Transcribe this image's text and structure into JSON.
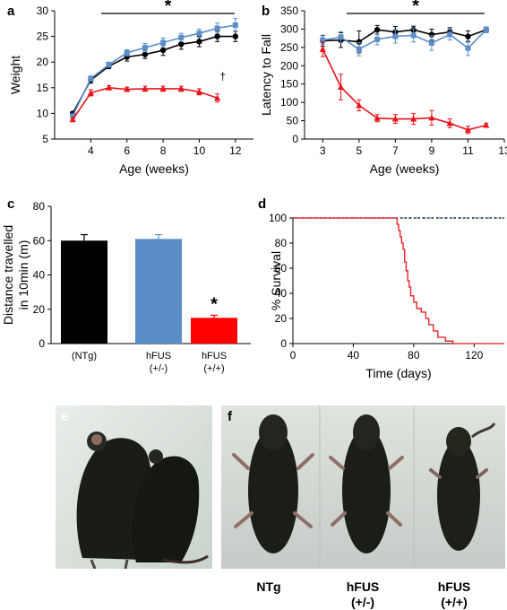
{
  "panels": {
    "a": "a",
    "b": "b",
    "c": "c",
    "d": "d",
    "e": "e",
    "f": "f"
  },
  "colors": {
    "ntg": "#000000",
    "het": "#5b8ec8",
    "hom": "#e8141b",
    "bar_black": "#000000",
    "bar_blue": "#5b8ec8",
    "bar_red": "#ff0000"
  },
  "photos": {
    "f_labels": [
      "NTg",
      "hFUS\n(+/-)",
      "hFUS\n(+/+)"
    ]
  },
  "chart_data": [
    {
      "panel": "a",
      "type": "line",
      "ylabel": "Weight",
      "xlabel": "Age (weeks)",
      "xlim": [
        2,
        13
      ],
      "ylim": [
        5,
        30
      ],
      "xticks": [
        4,
        6,
        8,
        10,
        12
      ],
      "yticks": [
        5,
        10,
        15,
        20,
        25,
        30
      ],
      "significance": "*",
      "dagger": "†",
      "series": [
        {
          "color": "#000000",
          "marker": "circle",
          "x": [
            3,
            4,
            5,
            6,
            7,
            8,
            9,
            10,
            11,
            12
          ],
          "y": [
            10,
            16.5,
            19.2,
            21,
            21.5,
            22.3,
            23.5,
            24,
            25,
            25
          ],
          "err": [
            0.3,
            0.6,
            0.5,
            0.8,
            0.8,
            1.0,
            1.0,
            1.0,
            1.0,
            1.0
          ]
        },
        {
          "color": "#5b8ec8",
          "marker": "square",
          "x": [
            3,
            4,
            5,
            6,
            7,
            8,
            9,
            10,
            11,
            12
          ],
          "y": [
            9.5,
            16.8,
            19.5,
            21.8,
            22.8,
            23.8,
            24.8,
            25.6,
            26.6,
            27.2
          ],
          "err": [
            0.3,
            0.5,
            0.5,
            0.6,
            0.8,
            0.9,
            0.8,
            0.8,
            1.0,
            1.3
          ]
        },
        {
          "color": "#e8141b",
          "marker": "triangle",
          "x": [
            3,
            4,
            5,
            6,
            7,
            8,
            9,
            10,
            11
          ],
          "y": [
            8.8,
            14,
            15,
            14.7,
            14.8,
            14.8,
            14.8,
            14.2,
            13
          ],
          "err": [
            0.2,
            0.6,
            0.4,
            0.4,
            0.5,
            0.5,
            0.5,
            0.6,
            0.8
          ]
        }
      ]
    },
    {
      "panel": "b",
      "type": "line",
      "ylabel": "Latency to Fall",
      "xlabel": "Age (weeks)",
      "xlim": [
        2,
        13
      ],
      "ylim": [
        0,
        350
      ],
      "xticks": [
        3,
        5,
        7,
        9,
        11,
        13
      ],
      "yticks": [
        0,
        50,
        100,
        150,
        200,
        250,
        300,
        350
      ],
      "significance": "*",
      "series": [
        {
          "color": "#000000",
          "marker": "circle",
          "x": [
            3,
            4,
            5,
            6,
            7,
            8,
            9,
            10,
            11,
            12
          ],
          "y": [
            268,
            270,
            265,
            298,
            292,
            298,
            285,
            292,
            280,
            298
          ],
          "err": [
            15,
            20,
            30,
            12,
            15,
            10,
            15,
            12,
            15,
            8
          ]
        },
        {
          "color": "#5b8ec8",
          "marker": "square",
          "x": [
            3,
            4,
            5,
            6,
            7,
            8,
            9,
            10,
            11,
            12
          ],
          "y": [
            270,
            278,
            245,
            272,
            280,
            283,
            262,
            285,
            248,
            298
          ],
          "err": [
            12,
            15,
            18,
            15,
            18,
            18,
            20,
            15,
            20,
            8
          ]
        },
        {
          "color": "#e8141b",
          "marker": "triangle",
          "x": [
            3,
            4,
            5,
            6,
            7,
            8,
            9,
            10,
            11,
            12
          ],
          "y": [
            245,
            142,
            92,
            57,
            55,
            55,
            58,
            43,
            25,
            38
          ],
          "err": [
            20,
            35,
            15,
            10,
            12,
            15,
            20,
            12,
            10,
            5
          ]
        }
      ]
    },
    {
      "panel": "c",
      "type": "bar",
      "ylabel": "Distance travelled\nin 10min (m)",
      "categories": [
        "(NTg)",
        "hFUS\n(+/-)",
        "hFUS\n(+/+)"
      ],
      "values": [
        60,
        61,
        15
      ],
      "err": [
        3.5,
        2.5,
        1.5
      ],
      "colors": [
        "#000000",
        "#5b8ec8",
        "#ff0000"
      ],
      "ylim": [
        0,
        80
      ],
      "yticks": [
        0,
        20,
        40,
        60,
        80
      ],
      "significance": "*"
    },
    {
      "panel": "d",
      "type": "line",
      "ylabel": "% Survival",
      "xlabel": "Time (days)",
      "xlim": [
        0,
        140
      ],
      "ylim": [
        0,
        100
      ],
      "xticks": [
        0,
        40,
        80,
        120
      ],
      "yticks": [
        0,
        20,
        40,
        60,
        80,
        100
      ],
      "series": [
        {
          "color": "#5b8ec8",
          "style": "dashed",
          "x": [
            0,
            140
          ],
          "y": [
            100,
            100
          ]
        },
        {
          "color": "#000000",
          "style": "dotted",
          "x": [
            0,
            140
          ],
          "y": [
            100,
            100
          ]
        },
        {
          "color": "#e8141b",
          "style": "step",
          "x": [
            0,
            68,
            69,
            70,
            71,
            72,
            73,
            74,
            75,
            76,
            77,
            78,
            80,
            82,
            85,
            88,
            90,
            93,
            96,
            101,
            106,
            140
          ],
          "y": [
            100,
            100,
            95,
            90,
            85,
            80,
            75,
            65,
            58,
            50,
            45,
            38,
            33,
            28,
            25,
            20,
            15,
            10,
            5,
            2,
            0,
            0
          ]
        }
      ]
    }
  ]
}
